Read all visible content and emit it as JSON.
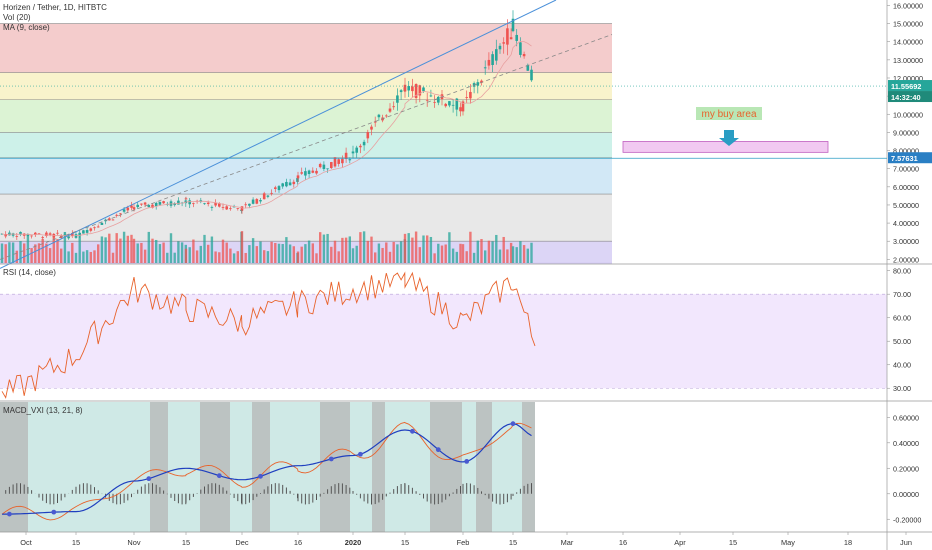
{
  "header": {
    "title": "Horizen / Tether, 1D, HITBTC",
    "vol_label": "Vol (20)",
    "ma_label": "MA (9, close)"
  },
  "rsi_label": "RSI (14, close)",
  "macd_label": "MACD_VXI (13, 21, 8)",
  "annotation": {
    "buy_area_label": "my buy area"
  },
  "badges": {
    "price": "11.55692",
    "countdown": "14:32:40",
    "level": "7.57631"
  },
  "colors": {
    "up": "#26a69a",
    "down": "#ef5350",
    "trend": "#4a90d9",
    "rsi_line": "#e8632c",
    "rsi_band": "#e9d7fb",
    "macd_line": "#1f3fbf",
    "signal_line": "#e8632c",
    "buy_box": "#f1c9f1",
    "buy_box_border": "#c05fc0"
  },
  "chart_data": [
    {
      "type": "candlestick",
      "title": "Horizen / Tether, 1D, HITBTC",
      "y_ticks": [
        "16.00000",
        "15.00000",
        "14.00000",
        "13.00000",
        "12.00000",
        "11.00000",
        "10.00000",
        "9.00000",
        "8.00000",
        "7.00000",
        "6.00000",
        "5.00000",
        "4.00000",
        "3.00000",
        "2.00000"
      ],
      "ylim": [
        1.8,
        16.3
      ],
      "x_ticks": [
        "Oct",
        "15",
        "Nov",
        "15",
        "Dec",
        "16",
        "2020",
        "15",
        "Feb",
        "15",
        "Mar",
        "16",
        "Apr",
        "15",
        "May",
        "18",
        "Jun"
      ],
      "fib_levels": [
        15.0,
        12.3,
        10.8,
        9.0,
        7.6,
        5.6,
        3.0
      ],
      "fib_colors": [
        "#f3c7c7",
        "#f8f2c6",
        "#d8f2cf",
        "#c8efe7",
        "#cde6f5",
        "#e6e6e6",
        "#d8d0f5"
      ],
      "key_points": [
        {
          "date": "Oct 1",
          "price": 3.4
        },
        {
          "date": "Oct 15",
          "price": 3.3
        },
        {
          "date": "Nov 1",
          "price": 4.9
        },
        {
          "date": "Nov 15",
          "price": 5.2
        },
        {
          "date": "Dec 1",
          "price": 4.8
        },
        {
          "date": "Dec 16",
          "price": 6.5
        },
        {
          "date": "2020",
          "price": 7.8
        },
        {
          "date": "Jan 15",
          "price": 11.5
        },
        {
          "date": "Feb 1",
          "price": 10.4
        },
        {
          "date": "Feb 14",
          "price": 14.8
        },
        {
          "date": "Feb 19",
          "price": 11.55
        }
      ],
      "last_price": 11.55692,
      "support_level": 7.57631,
      "buy_area": [
        7.9,
        8.5
      ]
    },
    {
      "type": "line",
      "title": "RSI (14, close)",
      "y_ticks": [
        "80.00",
        "70.00",
        "60.00",
        "50.00",
        "40.00",
        "30.00"
      ],
      "ylim": [
        25,
        82
      ],
      "bands": [
        70,
        30
      ],
      "key_points": [
        {
          "date": "Oct 1",
          "value": 26
        },
        {
          "date": "Oct 15",
          "value": 44
        },
        {
          "date": "Nov 1",
          "value": 72
        },
        {
          "date": "Nov 15",
          "value": 64
        },
        {
          "date": "Dec 1",
          "value": 58
        },
        {
          "date": "Dec 16",
          "value": 66
        },
        {
          "date": "2020",
          "value": 72
        },
        {
          "date": "Jan 15",
          "value": 76
        },
        {
          "date": "Feb 1",
          "value": 58
        },
        {
          "date": "Feb 14",
          "value": 76
        },
        {
          "date": "Feb 19",
          "value": 48
        }
      ]
    },
    {
      "type": "line",
      "title": "MACD_VXI (13, 21, 8)",
      "y_ticks": [
        "0.60000",
        "0.40000",
        "0.20000",
        "0.00000",
        "-0.20000"
      ],
      "ylim": [
        -0.3,
        0.72
      ],
      "key_points_macd": [
        {
          "date": "Oct 1",
          "value": -0.16
        },
        {
          "date": "Oct 15",
          "value": -0.14
        },
        {
          "date": "Nov 1",
          "value": 0.1
        },
        {
          "date": "Nov 15",
          "value": 0.2
        },
        {
          "date": "Dec 1",
          "value": 0.11
        },
        {
          "date": "Dec 16",
          "value": 0.22
        },
        {
          "date": "2020",
          "value": 0.3
        },
        {
          "date": "Jan 15",
          "value": 0.5
        },
        {
          "date": "Feb 1",
          "value": 0.25
        },
        {
          "date": "Feb 14",
          "value": 0.55
        },
        {
          "date": "Feb 19",
          "value": 0.45
        }
      ]
    }
  ]
}
